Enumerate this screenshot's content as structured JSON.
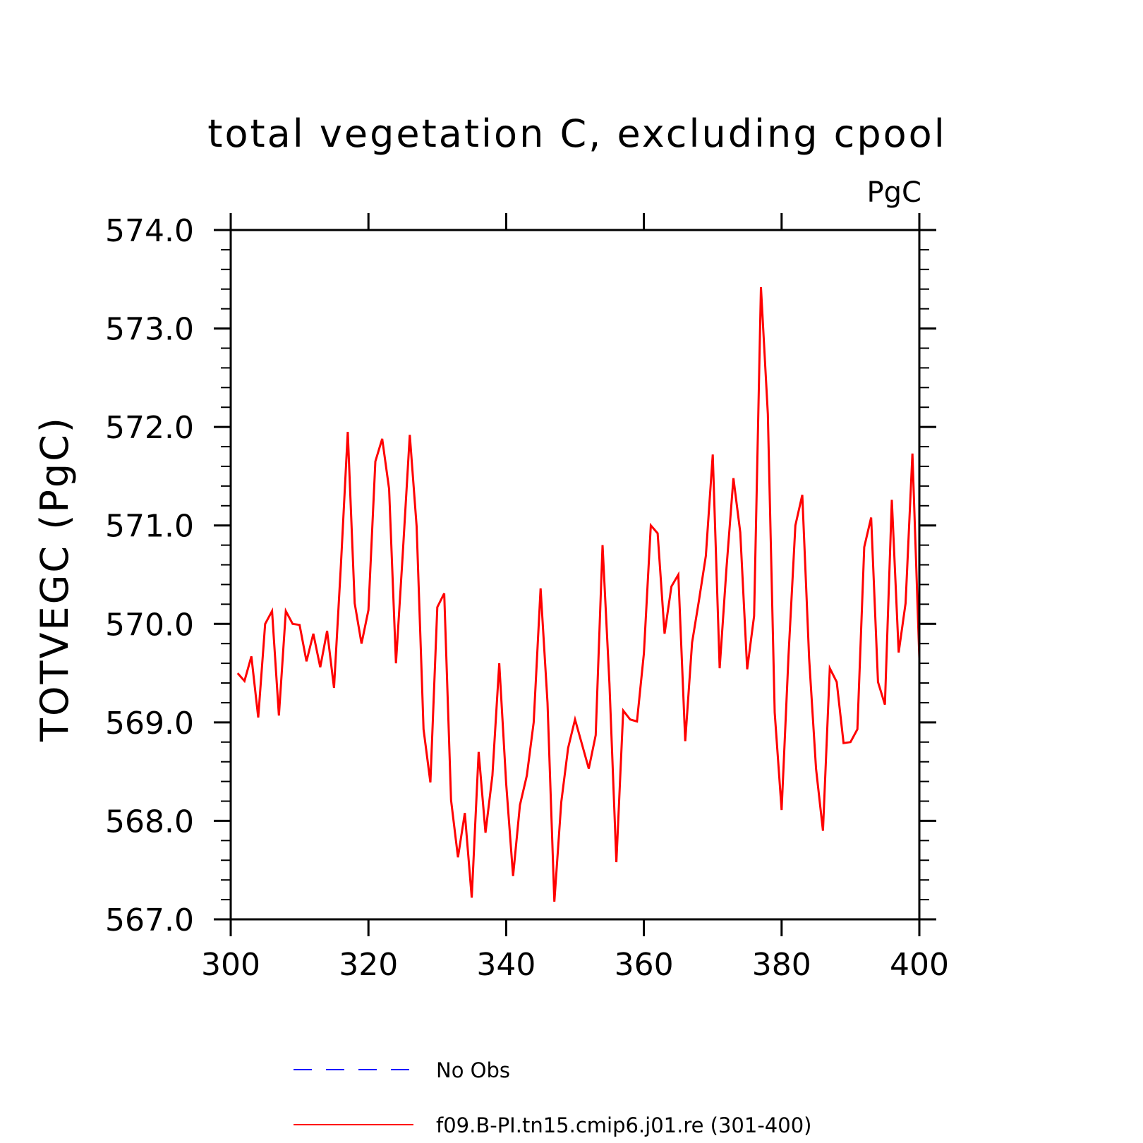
{
  "chart_data": {
    "type": "line",
    "title": "total vegetation C, excluding cpool",
    "units_label": "PgC",
    "ylabel": "TOTVEGC  (PgC)",
    "xlabel": "",
    "xlim": [
      300,
      400
    ],
    "ylim": [
      567.0,
      574.0
    ],
    "x_ticks": [
      "300",
      "320",
      "340",
      "360",
      "380",
      "400"
    ],
    "y_ticks": [
      "567.0",
      "568.0",
      "569.0",
      "570.0",
      "571.0",
      "572.0",
      "573.0",
      "574.0"
    ],
    "grid": false,
    "legend": {
      "placement": "bottom",
      "entries": [
        {
          "label": "No Obs",
          "color": "#0000ff",
          "style": "dashed"
        },
        {
          "label": "f09.B-PI.tn15.cmip6.j01.re (301-400)",
          "color": "#ff0000",
          "style": "solid"
        }
      ]
    },
    "series": [
      {
        "name": "f09.B-PI.tn15.cmip6.j01.re (301-400)",
        "color": "#ff0000",
        "x": [
          301,
          302,
          303,
          304,
          305,
          306,
          307,
          308,
          309,
          310,
          311,
          312,
          313,
          314,
          315,
          316,
          317,
          318,
          319,
          320,
          321,
          322,
          323,
          324,
          325,
          326,
          327,
          328,
          329,
          330,
          331,
          332,
          333,
          334,
          335,
          336,
          337,
          338,
          339,
          340,
          341,
          342,
          343,
          344,
          345,
          346,
          347,
          348,
          349,
          350,
          351,
          352,
          353,
          354,
          355,
          356,
          357,
          358,
          359,
          360,
          361,
          362,
          363,
          364,
          365,
          366,
          367,
          368,
          369,
          370,
          371,
          372,
          373,
          374,
          375,
          376,
          377,
          378,
          379,
          380,
          381,
          382,
          383,
          384,
          385,
          386,
          387,
          388,
          389,
          390,
          391,
          392,
          393,
          394,
          395,
          396,
          397,
          398,
          399,
          400
        ],
        "values": [
          569.5,
          569.42,
          569.67,
          569.05,
          570.0,
          570.13,
          569.07,
          570.13,
          570.0,
          569.99,
          569.62,
          569.9,
          569.56,
          569.93,
          569.35,
          570.6,
          571.95,
          570.21,
          569.8,
          570.14,
          571.65,
          571.88,
          571.37,
          569.6,
          570.73,
          571.92,
          570.99,
          568.93,
          568.39,
          570.17,
          570.31,
          568.21,
          567.63,
          568.08,
          567.22,
          568.7,
          567.88,
          568.46,
          569.6,
          568.38,
          567.44,
          568.16,
          568.46,
          569.0,
          570.36,
          569.2,
          567.18,
          568.19,
          568.74,
          569.03,
          568.78,
          568.53,
          568.87,
          570.8,
          569.39,
          567.58,
          569.12,
          569.03,
          569.01,
          569.7,
          571.0,
          570.92,
          569.9,
          570.38,
          570.5,
          568.81,
          569.81,
          570.24,
          570.69,
          571.72,
          569.55,
          570.57,
          571.48,
          570.93,
          569.54,
          570.08,
          573.42,
          572.13,
          569.1,
          568.11,
          569.68,
          571.0,
          571.31,
          569.65,
          568.53,
          567.9,
          569.55,
          569.41,
          568.79,
          568.8,
          568.93,
          570.78,
          571.08,
          569.41,
          569.18,
          571.26,
          569.71,
          570.21,
          571.73,
          569.65
        ]
      }
    ]
  }
}
